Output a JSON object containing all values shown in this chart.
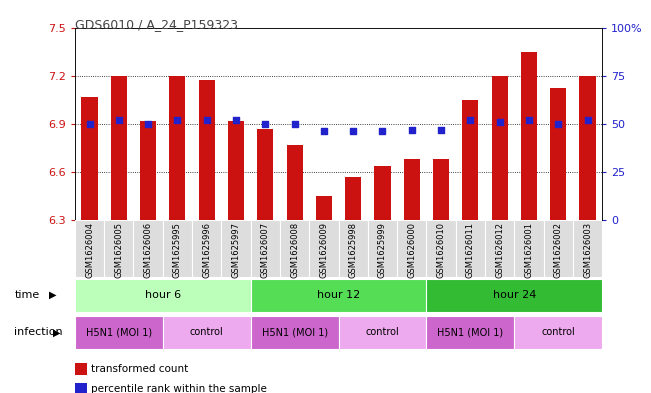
{
  "title": "GDS6010 / A_24_P159323",
  "samples": [
    "GSM1626004",
    "GSM1626005",
    "GSM1626006",
    "GSM1625995",
    "GSM1625996",
    "GSM1625997",
    "GSM1626007",
    "GSM1626008",
    "GSM1626009",
    "GSM1625998",
    "GSM1625999",
    "GSM1626000",
    "GSM1626010",
    "GSM1626011",
    "GSM1626012",
    "GSM1626001",
    "GSM1626002",
    "GSM1626003"
  ],
  "bar_values": [
    7.07,
    7.2,
    6.92,
    7.2,
    7.17,
    6.92,
    6.87,
    6.77,
    6.45,
    6.57,
    6.64,
    6.68,
    6.68,
    7.05,
    7.2,
    7.35,
    7.12,
    7.2
  ],
  "dot_values": [
    50,
    52,
    50,
    52,
    52,
    52,
    50,
    50,
    46,
    46,
    46,
    47,
    47,
    52,
    51,
    52,
    50,
    52
  ],
  "ylim_left": [
    6.3,
    7.5
  ],
  "ylim_right": [
    0,
    100
  ],
  "yticks_left": [
    6.3,
    6.6,
    6.9,
    7.2,
    7.5
  ],
  "yticks_right": [
    0,
    25,
    50,
    75,
    100
  ],
  "ytick_labels_left": [
    "6.3",
    "6.6",
    "6.9",
    "7.2",
    "7.5"
  ],
  "ytick_labels_right": [
    "0",
    "25",
    "50",
    "75",
    "100%"
  ],
  "hlines": [
    6.6,
    6.9,
    7.2
  ],
  "bar_color": "#CC1111",
  "dot_color": "#2222CC",
  "time_groups": [
    {
      "label": "hour 6",
      "start": 0,
      "end": 6,
      "color": "#BBFFBB"
    },
    {
      "label": "hour 12",
      "start": 6,
      "end": 12,
      "color": "#55DD55"
    },
    {
      "label": "hour 24",
      "start": 12,
      "end": 18,
      "color": "#33BB33"
    }
  ],
  "infection_groups": [
    {
      "label": "H5N1 (MOI 1)",
      "start": 0,
      "end": 3,
      "color": "#CC66CC"
    },
    {
      "label": "control",
      "start": 3,
      "end": 6,
      "color": "#EEAAee"
    },
    {
      "label": "H5N1 (MOI 1)",
      "start": 6,
      "end": 9,
      "color": "#CC66CC"
    },
    {
      "label": "control",
      "start": 9,
      "end": 12,
      "color": "#EEAAee"
    },
    {
      "label": "H5N1 (MOI 1)",
      "start": 12,
      "end": 15,
      "color": "#CC66CC"
    },
    {
      "label": "control",
      "start": 15,
      "end": 18,
      "color": "#EEAAee"
    }
  ],
  "legend_items": [
    {
      "label": "transformed count",
      "color": "#CC1111"
    },
    {
      "label": "percentile rank within the sample",
      "color": "#2222CC"
    }
  ]
}
